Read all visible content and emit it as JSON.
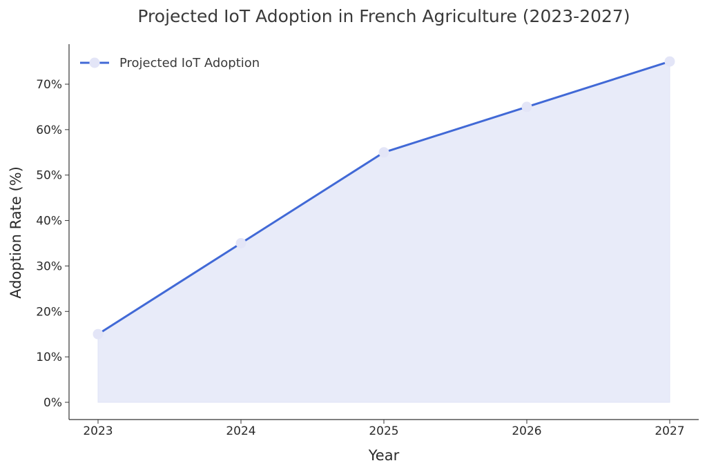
{
  "chart_data": {
    "type": "area",
    "title": "Projected IoT Adoption in French Agriculture (2023-2027)",
    "xlabel": "Year",
    "ylabel": "Adoption Rate (%)",
    "x": [
      "2023",
      "2024",
      "2025",
      "2026",
      "2027"
    ],
    "series": [
      {
        "name": "Projected IoT Adoption",
        "values": [
          15,
          35,
          55,
          65,
          75
        ]
      }
    ],
    "ylim": [
      0,
      78
    ],
    "yticks": [
      0,
      10,
      20,
      30,
      40,
      50,
      60,
      70
    ],
    "ytick_labels": [
      "0%",
      "10%",
      "20%",
      "30%",
      "40%",
      "50%",
      "60%",
      "70%"
    ],
    "grid": false,
    "legend_position": "top-left",
    "colors": {
      "line": "#4169d6",
      "fill": "#e8ebf9",
      "marker": "#e3e5f7",
      "axis": "#333333"
    }
  }
}
